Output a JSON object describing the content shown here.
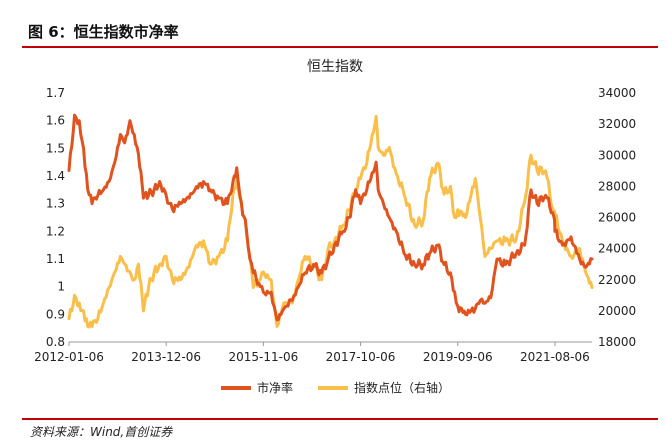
{
  "header": {
    "figure_title": "图 6：恒生指数市净率"
  },
  "source": {
    "text": "资料来源：Wind,首创证券"
  },
  "chart_data": {
    "type": "line",
    "title": "恒生指数",
    "x_tick_labels": [
      "2012-01-06",
      "2013-12-06",
      "2015-11-06",
      "2017-10-06",
      "2019-09-06",
      "2021-08-06"
    ],
    "x_range": [
      "2012-01-06",
      "2022-04-30"
    ],
    "y_left": {
      "range": [
        0.8,
        1.7
      ],
      "ticks": [
        "0.8",
        "0.9",
        "1",
        "1.1",
        "1.2",
        "1.3",
        "1.4",
        "1.5",
        "1.6",
        "1.7"
      ]
    },
    "y_right": {
      "range": [
        18000,
        34000
      ],
      "ticks": [
        "18000",
        "20000",
        "22000",
        "24000",
        "26000",
        "28000",
        "30000",
        "32000",
        "34000"
      ]
    },
    "grid": false,
    "legend_position": "bottom",
    "colors": {
      "pb": "#e0531f",
      "index": "#f9bf4a",
      "accent": "#c00000"
    },
    "series": [
      {
        "name": "市净率",
        "axis": "left",
        "x": [
          "2012-01-06",
          "2012-02-15",
          "2012-03-20",
          "2012-04-20",
          "2012-05-20",
          "2012-06-20",
          "2012-08-01",
          "2012-09-10",
          "2012-10-20",
          "2012-12-01",
          "2013-01-10",
          "2013-02-10",
          "2013-03-20",
          "2013-04-20",
          "2013-05-20",
          "2013-06-25",
          "2013-08-01",
          "2013-09-10",
          "2013-10-20",
          "2013-12-06",
          "2014-01-20",
          "2014-03-20",
          "2014-05-20",
          "2014-07-01",
          "2014-09-01",
          "2014-10-20",
          "2014-12-20",
          "2015-02-20",
          "2015-04-01",
          "2015-04-28",
          "2015-06-01",
          "2015-07-08",
          "2015-08-01",
          "2015-08-25",
          "2015-10-15",
          "2015-11-06",
          "2016-01-01",
          "2016-02-12",
          "2016-04-01",
          "2016-06-01",
          "2016-07-15",
          "2016-09-01",
          "2016-11-01",
          "2016-12-30",
          "2017-02-15",
          "2017-04-01",
          "2017-06-01",
          "2017-07-15",
          "2017-09-01",
          "2017-10-06",
          "2017-11-20",
          "2018-01-26",
          "2018-02-10",
          "2018-03-20",
          "2018-05-01",
          "2018-06-20",
          "2018-08-15",
          "2018-10-31",
          "2018-12-31",
          "2019-02-15",
          "2019-04-15",
          "2019-05-31",
          "2019-07-15",
          "2019-08-15",
          "2019-09-06",
          "2019-11-01",
          "2020-01-10",
          "2020-02-15",
          "2020-03-20",
          "2020-05-01",
          "2020-06-15",
          "2020-08-15",
          "2020-10-31",
          "2020-12-31",
          "2021-02-15",
          "2021-03-31",
          "2021-05-31",
          "2021-07-31",
          "2021-08-06",
          "2021-09-30",
          "2021-11-30",
          "2022-01-31",
          "2022-03-15",
          "2022-04-30"
        ],
        "values": [
          1.42,
          1.62,
          1.6,
          1.5,
          1.35,
          1.3,
          1.33,
          1.35,
          1.38,
          1.45,
          1.55,
          1.52,
          1.6,
          1.55,
          1.48,
          1.32,
          1.33,
          1.35,
          1.38,
          1.33,
          1.28,
          1.3,
          1.32,
          1.35,
          1.38,
          1.35,
          1.32,
          1.3,
          1.38,
          1.43,
          1.3,
          1.2,
          1.1,
          1.05,
          1.0,
          0.98,
          0.98,
          0.88,
          0.92,
          0.95,
          1.0,
          1.05,
          1.08,
          1.05,
          1.1,
          1.15,
          1.2,
          1.25,
          1.35,
          1.3,
          1.35,
          1.45,
          1.35,
          1.3,
          1.25,
          1.2,
          1.12,
          1.08,
          1.08,
          1.12,
          1.15,
          1.08,
          1.05,
          0.98,
          0.93,
          0.9,
          0.92,
          0.95,
          0.94,
          0.96,
          1.1,
          1.08,
          1.12,
          1.15,
          1.35,
          1.3,
          1.33,
          1.25,
          1.2,
          1.15,
          1.18,
          1.1,
          1.07,
          1.1
        ]
      },
      {
        "name": "指数点位（右轴）",
        "axis": "right",
        "x": [
          "2012-01-06",
          "2012-02-15",
          "2012-03-20",
          "2012-04-20",
          "2012-05-20",
          "2012-06-20",
          "2012-08-01",
          "2012-09-10",
          "2012-10-20",
          "2012-12-01",
          "2013-01-10",
          "2013-02-10",
          "2013-03-20",
          "2013-04-20",
          "2013-05-20",
          "2013-06-25",
          "2013-08-01",
          "2013-09-10",
          "2013-10-20",
          "2013-12-06",
          "2014-01-20",
          "2014-03-20",
          "2014-05-20",
          "2014-07-01",
          "2014-09-01",
          "2014-10-20",
          "2014-12-20",
          "2015-02-20",
          "2015-04-01",
          "2015-04-28",
          "2015-06-01",
          "2015-07-08",
          "2015-08-01",
          "2015-08-25",
          "2015-10-15",
          "2015-11-06",
          "2016-01-01",
          "2016-02-12",
          "2016-04-01",
          "2016-06-01",
          "2016-07-15",
          "2016-09-01",
          "2016-11-01",
          "2016-12-30",
          "2017-02-15",
          "2017-04-01",
          "2017-06-01",
          "2017-07-15",
          "2017-09-01",
          "2017-10-06",
          "2017-11-20",
          "2018-01-26",
          "2018-02-10",
          "2018-03-20",
          "2018-05-01",
          "2018-06-20",
          "2018-08-15",
          "2018-10-31",
          "2018-12-31",
          "2019-02-15",
          "2019-04-15",
          "2019-05-31",
          "2019-07-15",
          "2019-08-15",
          "2019-09-06",
          "2019-11-01",
          "2020-01-10",
          "2020-02-15",
          "2020-03-20",
          "2020-05-01",
          "2020-06-15",
          "2020-08-15",
          "2020-10-31",
          "2020-12-31",
          "2021-02-15",
          "2021-03-31",
          "2021-05-31",
          "2021-07-31",
          "2021-08-06",
          "2021-09-30",
          "2021-11-30",
          "2022-01-31",
          "2022-03-15",
          "2022-04-30"
        ],
        "values": [
          19500,
          21000,
          20500,
          20000,
          19000,
          19000,
          19500,
          20500,
          21500,
          22500,
          23500,
          23000,
          22500,
          22000,
          23000,
          20000,
          21500,
          22500,
          23000,
          23500,
          22000,
          22000,
          22800,
          24000,
          24500,
          23000,
          23500,
          24500,
          27500,
          28500,
          27000,
          25000,
          23500,
          21500,
          22000,
          22500,
          22000,
          19000,
          20500,
          20500,
          22000,
          23500,
          23000,
          22000,
          24000,
          24500,
          25500,
          26500,
          27800,
          28500,
          29500,
          32500,
          30500,
          30000,
          30500,
          28800,
          27500,
          25500,
          25800,
          28500,
          29500,
          27500,
          28000,
          26000,
          26500,
          26000,
          28500,
          26000,
          23500,
          24000,
          24500,
          24500,
          24600,
          27000,
          30000,
          29000,
          29000,
          26000,
          26200,
          24500,
          23500,
          24000,
          22500,
          21500
        ]
      }
    ]
  }
}
